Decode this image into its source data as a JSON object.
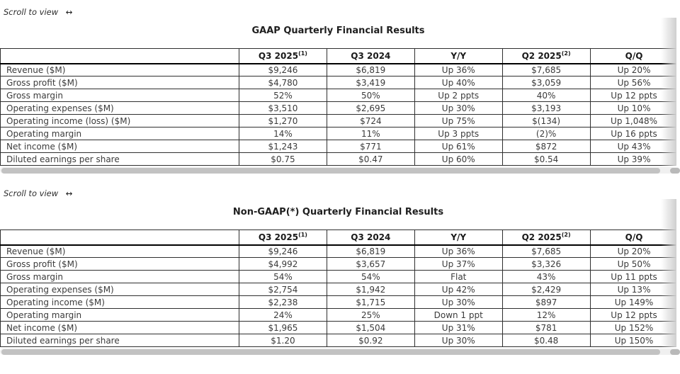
{
  "scroll_hint": {
    "text": "Scroll to view",
    "arrow": "↔"
  },
  "tables": [
    {
      "title": "GAAP Quarterly Financial Results",
      "columns": [
        {
          "label": "",
          "superscript": ""
        },
        {
          "label": "Q3 2025",
          "superscript": "(1)"
        },
        {
          "label": "Q3 2024",
          "superscript": ""
        },
        {
          "label": "Y/Y",
          "superscript": ""
        },
        {
          "label": "Q2 2025",
          "superscript": "(2)"
        },
        {
          "label": "Q/Q",
          "superscript": ""
        }
      ],
      "rows": [
        {
          "label": "Revenue ($M)",
          "values": [
            "$9,246",
            "$6,819",
            "Up 36%",
            "$7,685",
            "Up 20%"
          ]
        },
        {
          "label": "Gross profit ($M)",
          "values": [
            "$4,780",
            "$3,419",
            "Up 40%",
            "$3,059",
            "Up 56%"
          ]
        },
        {
          "label": "Gross margin",
          "values": [
            "52%",
            "50%",
            "Up 2 ppts",
            "40%",
            "Up 12 ppts"
          ]
        },
        {
          "label": "Operating expenses ($M)",
          "values": [
            "$3,510",
            "$2,695",
            "Up 30%",
            "$3,193",
            "Up 10%"
          ]
        },
        {
          "label": "Operating income (loss) ($M)",
          "values": [
            "$1,270",
            "$724",
            "Up 75%",
            "$(134)",
            "Up 1,048%"
          ]
        },
        {
          "label": "Operating margin",
          "values": [
            "14%",
            "11%",
            "Up 3 ppts",
            "(2)%",
            "Up 16 ppts"
          ]
        },
        {
          "label": "Net income ($M)",
          "values": [
            "$1,243",
            "$771",
            "Up 61%",
            "$872",
            "Up 43%"
          ]
        },
        {
          "label": "Diluted earnings per share",
          "values": [
            "$0.75",
            "$0.47",
            "Up 60%",
            "$0.54",
            "Up 39%"
          ]
        }
      ]
    },
    {
      "title": "Non-GAAP(*) Quarterly Financial Results",
      "columns": [
        {
          "label": "",
          "superscript": ""
        },
        {
          "label": "Q3 2025",
          "superscript": "(1)"
        },
        {
          "label": "Q3 2024",
          "superscript": ""
        },
        {
          "label": "Y/Y",
          "superscript": ""
        },
        {
          "label": "Q2 2025",
          "superscript": "(2)"
        },
        {
          "label": "Q/Q",
          "superscript": ""
        }
      ],
      "rows": [
        {
          "label": "Revenue ($M)",
          "values": [
            "$9,246",
            "$6,819",
            "Up 36%",
            "$7,685",
            "Up 20%"
          ]
        },
        {
          "label": "Gross profit ($M)",
          "values": [
            "$4,992",
            "$3,657",
            "Up 37%",
            "$3,326",
            "Up 50%"
          ]
        },
        {
          "label": "Gross margin",
          "values": [
            "54%",
            "54%",
            "Flat",
            "43%",
            "Up 11 ppts"
          ]
        },
        {
          "label": "Operating expenses ($M)",
          "values": [
            "$2,754",
            "$1,942",
            "Up 42%",
            "$2,429",
            "Up 13%"
          ]
        },
        {
          "label": "Operating income ($M)",
          "values": [
            "$2,238",
            "$1,715",
            "Up 30%",
            "$897",
            "Up 149%"
          ]
        },
        {
          "label": "Operating margin",
          "values": [
            "24%",
            "25%",
            "Down 1 ppt",
            "12%",
            "Up 12 ppts"
          ]
        },
        {
          "label": "Net income ($M)",
          "values": [
            "$1,965",
            "$1,504",
            "Up 31%",
            "$781",
            "Up 152%"
          ]
        },
        {
          "label": "Diluted earnings per share",
          "values": [
            "$1.20",
            "$0.92",
            "Up 30%",
            "$0.48",
            "Up 150%"
          ]
        }
      ]
    }
  ],
  "colors": {
    "background": "#ffffff",
    "table_border": "#2f2f2f",
    "body_text": "#3b3b3b",
    "header_text": "#1a1a1a",
    "scrollbar_thumb": "#c2c2c2",
    "scroll_fade": "#cfcfcf"
  }
}
